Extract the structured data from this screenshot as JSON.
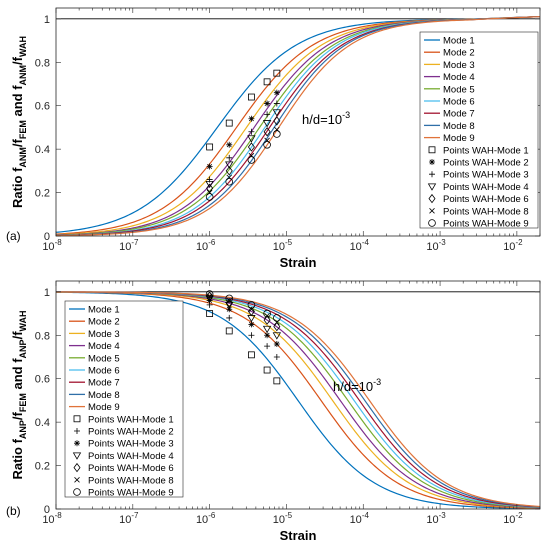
{
  "colors": {
    "mode_1": "#0072BD",
    "mode_2": "#D95319",
    "mode_3": "#EDB120",
    "mode_4": "#7E2F8E",
    "mode_5": "#77AC30",
    "mode_6": "#4DBEEE",
    "mode_7": "#A2142F",
    "mode_8": "#2F6FA8",
    "mode_9": "#E0733A",
    "reference_line": "#000000",
    "axes": "#262626",
    "tick_labels": "#262626"
  },
  "chart_data": [
    {
      "panel_label": "(a)",
      "type": "line",
      "x_scale": "log",
      "xlim": [
        1e-08,
        0.02
      ],
      "ylim": [
        0,
        1.05
      ],
      "xlabel": "Strain",
      "ylabel_main": "Ratio f",
      "ylabel_sub1": "ANM",
      "ylabel_mid": "/f",
      "ylabel_sub2": "FEM",
      "ylabel_and": " and f",
      "ylabel_sub3": "ANM",
      "ylabel_mid2": "/f",
      "ylabel_sub4": "WAH",
      "x_ticks": [
        {
          "base": "10",
          "exp": "-8"
        },
        {
          "base": "10",
          "exp": "-7"
        },
        {
          "base": "10",
          "exp": "-6"
        },
        {
          "base": "10",
          "exp": "-5"
        },
        {
          "base": "10",
          "exp": "-4"
        },
        {
          "base": "10",
          "exp": "-3"
        },
        {
          "base": "10",
          "exp": "-2"
        }
      ],
      "y_ticks": [
        "0",
        "0.2",
        "0.4",
        "0.6",
        "0.8",
        "1"
      ],
      "annotation_text": "h/d=10",
      "annotation_exp": "-3",
      "grid": false,
      "legend_position": "right",
      "curve_model": {
        "shape": "logistic-in-log10-strain",
        "direction": "increasing",
        "midpoint_log10_strain": [
          -5.9,
          -5.65,
          -5.52,
          -5.42,
          -5.35,
          -5.28,
          -5.22,
          -5.16,
          -5.1
        ],
        "width_decades": [
          0.62,
          0.6,
          0.59,
          0.58,
          0.58,
          0.57,
          0.57,
          0.56,
          0.56
        ]
      },
      "series": [
        {
          "name": "Mode 1",
          "color_key": "mode_1"
        },
        {
          "name": "Mode 2",
          "color_key": "mode_2"
        },
        {
          "name": "Mode 3",
          "color_key": "mode_3"
        },
        {
          "name": "Mode 4",
          "color_key": "mode_4"
        },
        {
          "name": "Mode 5",
          "color_key": "mode_5"
        },
        {
          "name": "Mode 6",
          "color_key": "mode_6"
        },
        {
          "name": "Mode 7",
          "color_key": "mode_7"
        },
        {
          "name": "Mode 8",
          "color_key": "mode_8"
        },
        {
          "name": "Mode 9",
          "color_key": "mode_9"
        }
      ],
      "marker_series": [
        {
          "name": "Points WAH-Mode 1",
          "marker": "square",
          "mode_index": 0,
          "x": [
            1e-06,
            1.8e-06,
            3.5e-06,
            5.6e-06,
            7.5e-06
          ],
          "y": [
            0.41,
            0.52,
            0.64,
            0.71,
            0.75
          ]
        },
        {
          "name": "Points WAH-Mode 2",
          "marker": "asterisk",
          "mode_index": 1,
          "x": [
            1e-06,
            1.8e-06,
            3.5e-06,
            5.6e-06,
            7.5e-06
          ],
          "y": [
            0.32,
            0.42,
            0.54,
            0.61,
            0.66
          ]
        },
        {
          "name": "Points WAH-Mode 3",
          "marker": "plus",
          "mode_index": 2,
          "x": [
            1e-06,
            1.8e-06,
            3.5e-06,
            5.6e-06,
            7.5e-06
          ],
          "y": [
            0.26,
            0.36,
            0.48,
            0.56,
            0.61
          ]
        },
        {
          "name": "Points WAH-Mode 4",
          "marker": "triangle-down",
          "mode_index": 3,
          "x": [
            1e-06,
            1.8e-06,
            3.5e-06,
            5.6e-06,
            7.5e-06
          ],
          "y": [
            0.24,
            0.33,
            0.45,
            0.52,
            0.57
          ]
        },
        {
          "name": "Points WAH-Mode 6",
          "marker": "diamond",
          "mode_index": 5,
          "x": [
            1e-06,
            1.8e-06,
            3.5e-06,
            5.6e-06,
            7.5e-06
          ],
          "y": [
            0.22,
            0.3,
            0.41,
            0.48,
            0.53
          ]
        },
        {
          "name": "Points WAH-Mode 8",
          "marker": "x",
          "mode_index": 7,
          "x": [
            1e-06,
            1.8e-06,
            3.5e-06,
            5.6e-06,
            7.5e-06
          ],
          "y": [
            0.2,
            0.27,
            0.37,
            0.44,
            0.49
          ]
        },
        {
          "name": "Points WAH-Mode 9",
          "marker": "circle",
          "mode_index": 8,
          "x": [
            1e-06,
            1.8e-06,
            3.5e-06,
            5.6e-06,
            7.5e-06
          ],
          "y": [
            0.18,
            0.25,
            0.35,
            0.42,
            0.47
          ]
        }
      ]
    },
    {
      "panel_label": "(b)",
      "type": "line",
      "x_scale": "log",
      "xlim": [
        1e-08,
        0.02
      ],
      "ylim": [
        0,
        1.05
      ],
      "xlabel": "Strain",
      "ylabel_main": "Ratio f",
      "ylabel_sub1": "ANP",
      "ylabel_mid": "/f",
      "ylabel_sub2": "FEM",
      "ylabel_and": " and f",
      "ylabel_sub3": "ANP",
      "ylabel_mid2": "/f",
      "ylabel_sub4": "WAH",
      "x_ticks": [
        {
          "base": "10",
          "exp": "-8"
        },
        {
          "base": "10",
          "exp": "-7"
        },
        {
          "base": "10",
          "exp": "-6"
        },
        {
          "base": "10",
          "exp": "-5"
        },
        {
          "base": "10",
          "exp": "-4"
        },
        {
          "base": "10",
          "exp": "-3"
        },
        {
          "base": "10",
          "exp": "-2"
        }
      ],
      "y_ticks": [
        "0",
        "0.2",
        "0.4",
        "0.6",
        "0.8",
        "1"
      ],
      "annotation_text": "h/d=10",
      "annotation_exp": "-3",
      "grid": false,
      "legend_position": "left",
      "curve_model": {
        "shape": "logistic-in-log10-strain",
        "direction": "decreasing",
        "midpoint_log10_strain": [
          -4.85,
          -4.55,
          -4.4,
          -4.3,
          -4.2,
          -4.12,
          -4.05,
          -3.98,
          -3.92
        ],
        "width_decades": [
          0.6,
          0.6,
          0.6,
          0.6,
          0.6,
          0.6,
          0.6,
          0.6,
          0.6
        ]
      },
      "series": [
        {
          "name": "Mode 1",
          "color_key": "mode_1"
        },
        {
          "name": "Mode 2",
          "color_key": "mode_2"
        },
        {
          "name": "Mode 3",
          "color_key": "mode_3"
        },
        {
          "name": "Mode 4",
          "color_key": "mode_4"
        },
        {
          "name": "Mode 5",
          "color_key": "mode_5"
        },
        {
          "name": "Mode 6",
          "color_key": "mode_6"
        },
        {
          "name": "Mode 7",
          "color_key": "mode_7"
        },
        {
          "name": "Mode 8",
          "color_key": "mode_8"
        },
        {
          "name": "Mode 9",
          "color_key": "mode_9"
        }
      ],
      "marker_series": [
        {
          "name": "Points WAH-Mode 1",
          "marker": "square",
          "mode_index": 0,
          "x": [
            1e-06,
            1.8e-06,
            3.5e-06,
            5.6e-06,
            7.5e-06
          ],
          "y": [
            0.9,
            0.82,
            0.71,
            0.64,
            0.59
          ]
        },
        {
          "name": "Points WAH-Mode 2",
          "marker": "plus",
          "mode_index": 1,
          "x": [
            1e-06,
            1.8e-06,
            3.5e-06,
            5.6e-06,
            7.5e-06
          ],
          "y": [
            0.94,
            0.88,
            0.8,
            0.75,
            0.7
          ]
        },
        {
          "name": "Points WAH-Mode 3",
          "marker": "asterisk",
          "mode_index": 2,
          "x": [
            1e-06,
            1.8e-06,
            3.5e-06,
            5.6e-06,
            7.5e-06
          ],
          "y": [
            0.96,
            0.92,
            0.85,
            0.8,
            0.76
          ]
        },
        {
          "name": "Points WAH-Mode 4",
          "marker": "triangle-down",
          "mode_index": 3,
          "x": [
            1e-06,
            1.8e-06,
            3.5e-06,
            5.6e-06,
            7.5e-06
          ],
          "y": [
            0.97,
            0.94,
            0.88,
            0.83,
            0.8
          ]
        },
        {
          "name": "Points WAH-Mode 6",
          "marker": "diamond",
          "mode_index": 5,
          "x": [
            1e-06,
            1.8e-06,
            3.5e-06,
            5.6e-06,
            7.5e-06
          ],
          "y": [
            0.98,
            0.95,
            0.91,
            0.87,
            0.84
          ]
        },
        {
          "name": "Points WAH-Mode 8",
          "marker": "x",
          "mode_index": 7,
          "x": [
            1e-06,
            1.8e-06,
            3.5e-06,
            5.6e-06,
            7.5e-06
          ],
          "y": [
            0.98,
            0.96,
            0.92,
            0.89,
            0.86
          ]
        },
        {
          "name": "Points WAH-Mode 9",
          "marker": "circle",
          "mode_index": 8,
          "x": [
            1e-06,
            1.8e-06,
            3.5e-06,
            5.6e-06,
            7.5e-06
          ],
          "y": [
            0.99,
            0.97,
            0.94,
            0.9,
            0.88
          ]
        }
      ]
    }
  ]
}
